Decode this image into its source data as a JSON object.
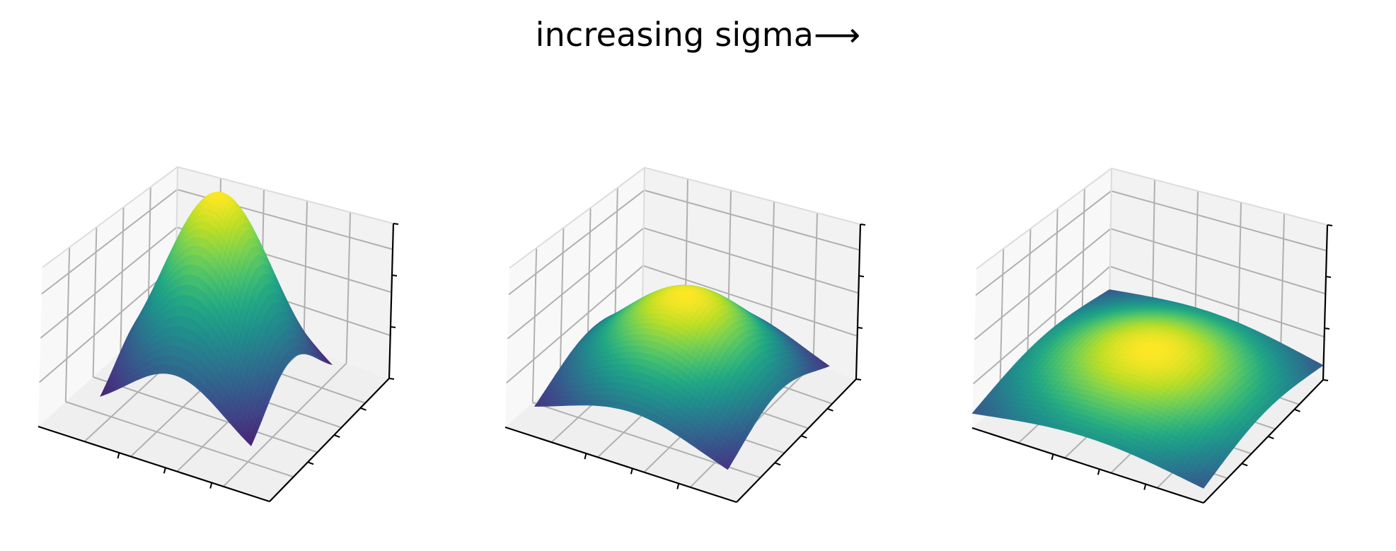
{
  "suptitle": "increasing sigma⟶",
  "colormap": "viridis",
  "colors": {
    "pane_left": "#f8f8f8",
    "pane_back": "#f2f2f2",
    "pane_floor": "#efefef",
    "grid": "#b0b0b0",
    "axis": "#000000"
  },
  "chart_data": [
    {
      "type": "surface",
      "function": "exp(-(x^2+y^2)/(2*sigma^2))",
      "relative_sigma": 1.0,
      "xlabel": "",
      "ylabel": "",
      "zlabel": "",
      "tick_labels": "none",
      "grid": true
    },
    {
      "type": "surface",
      "function": "exp(-(x^2+y^2)/(2*sigma^2))",
      "relative_sigma": 1.4,
      "xlabel": "",
      "ylabel": "",
      "zlabel": "",
      "tick_labels": "none",
      "grid": true
    },
    {
      "type": "surface",
      "function": "exp(-(x^2+y^2)/(2*sigma^2))",
      "relative_sigma": 2.0,
      "xlabel": "",
      "ylabel": "",
      "zlabel": "",
      "tick_labels": "none",
      "grid": true
    }
  ]
}
